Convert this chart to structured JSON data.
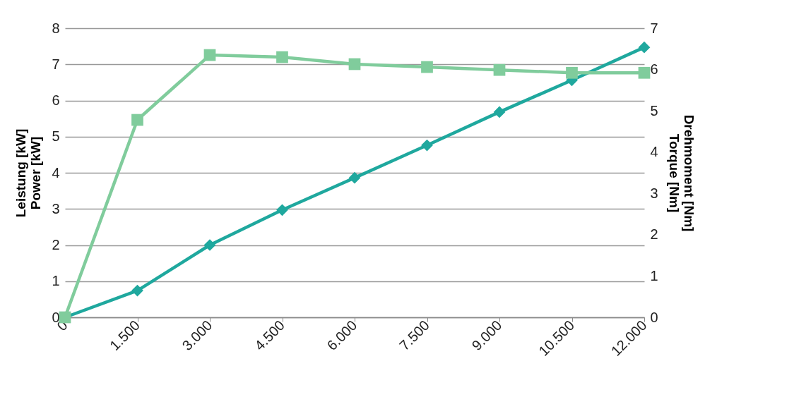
{
  "chart_data": {
    "type": "line",
    "ylabel": "Leistung [kW]\nPower [kW]",
    "y2label": "Drehmoment [Nm]\nTorque [Nm]",
    "categories": [
      "0",
      "1.500",
      "3.000",
      "4.500",
      "6.000",
      "7.500",
      "9.000",
      "10.500",
      "12.000"
    ],
    "series": [
      {
        "color": "#1fa89e",
        "marker": "diamond",
        "values": [
          0,
          0.74,
          2.0,
          2.97,
          3.86,
          4.76,
          5.68,
          6.56,
          7.47
        ]
      },
      {
        "color": "#80cc9c",
        "marker": "square",
        "axis": "y2",
        "values": [
          0,
          4.78,
          6.35,
          6.3,
          6.13,
          6.06,
          5.99,
          5.92,
          5.92
        ]
      }
    ],
    "ylim": [
      0,
      8
    ],
    "yticks": [
      0,
      1,
      2,
      3,
      4,
      5,
      6,
      7,
      8
    ],
    "y2lim": [
      0,
      7
    ],
    "y2ticks": [
      0,
      1,
      2,
      3,
      4,
      5,
      6,
      7
    ],
    "grid": "y",
    "line_style": "solid"
  }
}
